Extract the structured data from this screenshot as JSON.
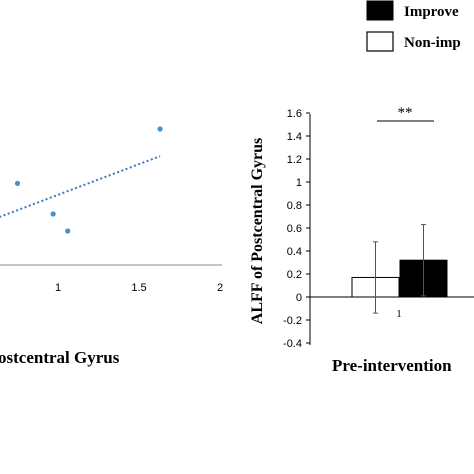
{
  "chart_data": [
    {
      "type": "scatter",
      "title": "",
      "xlabel": "ostcentral Gyrus",
      "ylabel": "",
      "xlim": [
        0.3,
        2
      ],
      "x_ticks": [
        "1",
        "1.5",
        "2"
      ],
      "grid": false,
      "points": [
        {
          "x": 0.75,
          "y": 0.64
        },
        {
          "x": 0.97,
          "y": 0.55
        },
        {
          "x": 1.06,
          "y": 0.5
        },
        {
          "x": 1.63,
          "y": 0.8
        }
      ],
      "trendline": {
        "style": "dotted",
        "x": [
          0.3,
          1.63
        ],
        "y": [
          0.48,
          0.72
        ]
      },
      "colors": {
        "points": "#4a90c8",
        "trendline": "#3a78c0"
      }
    },
    {
      "type": "bar",
      "title": "",
      "xlabel": "Pre-intervention",
      "ylabel": "ALFF of Postcentral Gyrus",
      "ylim": [
        -0.4,
        1.6
      ],
      "y_ticks": [
        "1.6",
        "1.4",
        "1.2",
        "1",
        "0.8",
        "0.6",
        "0.4",
        "0.2",
        "0",
        "-0.2",
        "-0.4"
      ],
      "categories": [
        "1"
      ],
      "series": [
        {
          "name": "Non-imp",
          "values": [
            0.17
          ],
          "error": [
            0.31
          ],
          "color": "#ffffff"
        },
        {
          "name": "Improve",
          "values": [
            0.32
          ],
          "error": [
            0.31
          ],
          "color": "#000000"
        }
      ],
      "significance": "**",
      "legend_position": "top-right"
    }
  ]
}
